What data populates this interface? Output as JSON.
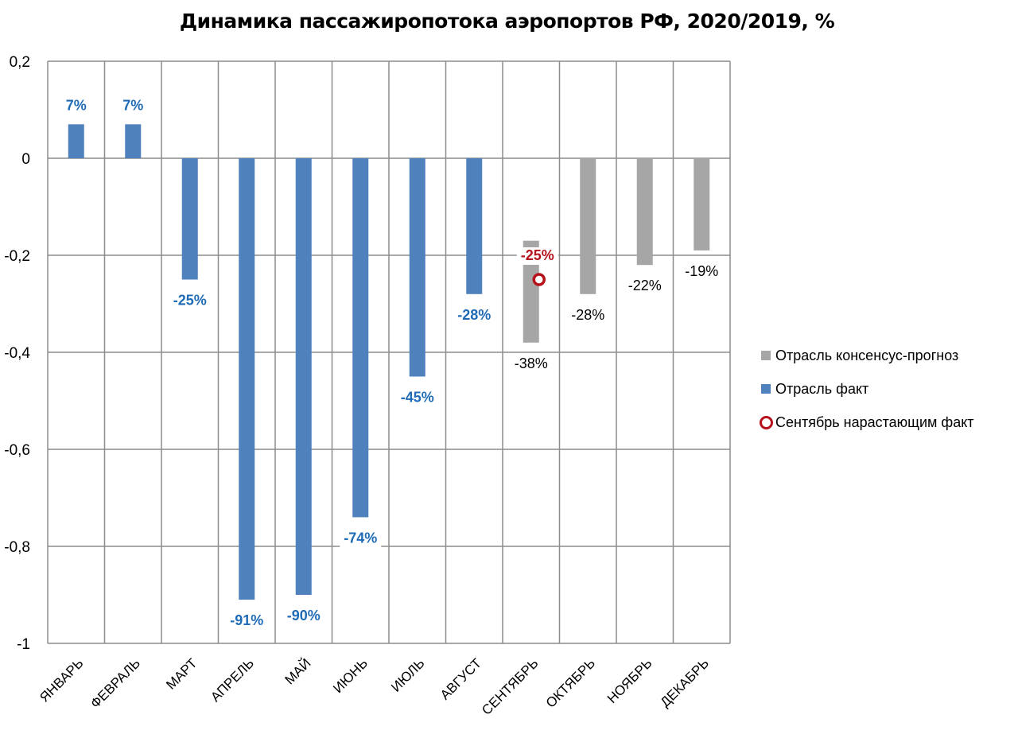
{
  "chart_data": {
    "type": "bar",
    "title": "Динамика пассажиропотока аэропортов РФ, 2020/2019, %",
    "categories": [
      "ЯНВАРЬ",
      "ФЕВРАЛЬ",
      "МАРТ",
      "АПРЕЛЬ",
      "МАЙ",
      "ИЮНЬ",
      "ИЮЛЬ",
      "АВГУСТ",
      "СЕНТЯБРЬ",
      "ОКТЯБРЬ",
      "НОЯБРЬ",
      "ДЕКАБРЬ"
    ],
    "ylim": [
      -1,
      0.2
    ],
    "yticks": [
      0.2,
      0,
      -0.2,
      -0.4,
      -0.6,
      -0.8,
      -1
    ],
    "ytick_labels": [
      "0,2",
      "0",
      "-0,2",
      "-0,4",
      "-0,6",
      "-0,8",
      "-1"
    ],
    "grid": true,
    "legend_position": "right",
    "series": [
      {
        "name": "Отрасль консенсус-прогноз",
        "color": "#a6a6a6",
        "ranges": [
          {
            "category": "СЕНТЯБРЬ",
            "from": -0.17,
            "to": -0.38,
            "label": "-38%"
          },
          {
            "category": "ОКТЯБРЬ",
            "from": 0,
            "to": -0.28,
            "label": "-28%"
          },
          {
            "category": "НОЯБРЬ",
            "from": 0,
            "to": -0.22,
            "label": "-22%"
          },
          {
            "category": "ДЕКАБРЬ",
            "from": 0,
            "to": -0.19,
            "label": "-19%"
          }
        ]
      },
      {
        "name": "Отрасль факт",
        "color": "#4f81bd",
        "label_color": "#1f6bb5",
        "values": [
          0.07,
          0.07,
          -0.25,
          -0.91,
          -0.9,
          -0.74,
          -0.45,
          -0.28,
          null,
          null,
          null,
          null
        ],
        "labels": [
          "7%",
          "7%",
          "-25%",
          "-91%",
          "-90%",
          "-74%",
          "-45%",
          "-28%",
          "",
          "",
          "",
          ""
        ]
      },
      {
        "name": "Сентябрь нарастающим факт",
        "color": "#b5121b",
        "points": [
          {
            "category": "СЕНТЯБРЬ",
            "value": -0.25,
            "label": "-25%"
          }
        ]
      }
    ]
  }
}
